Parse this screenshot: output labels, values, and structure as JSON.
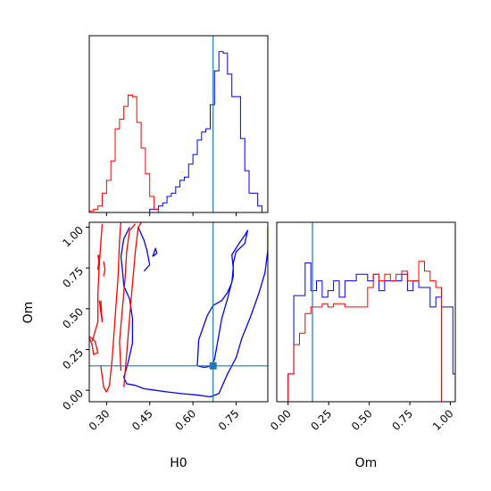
{
  "chart_data": {
    "type": "corner",
    "colors": {
      "series_a": "#0000ff",
      "series_b": "#ff0000",
      "truth": "#1f77b4"
    },
    "truth": {
      "H0": 0.67,
      "Om": 0.15
    },
    "axes_ranges": {
      "H0": [
        0.24,
        0.86
      ],
      "Om": [
        -0.07,
        1.03
      ]
    },
    "grid": false,
    "panels": [
      {
        "name": "H0 marginal",
        "type": "histogram",
        "xlim": [
          0.24,
          0.86
        ],
        "bin_edges": [
          0.24,
          0.255,
          0.27,
          0.285,
          0.3,
          0.315,
          0.33,
          0.345,
          0.36,
          0.375,
          0.39,
          0.405,
          0.42,
          0.435,
          0.45,
          0.465,
          0.48,
          0.495,
          0.51,
          0.525,
          0.54,
          0.555,
          0.57,
          0.585,
          0.6,
          0.615,
          0.63,
          0.645,
          0.66,
          0.675,
          0.69,
          0.705,
          0.72,
          0.735,
          0.75,
          0.765,
          0.78,
          0.795,
          0.81,
          0.825,
          0.84,
          0.855
        ],
        "series": [
          {
            "counts": [
              0,
              0,
              0,
              0,
              0,
              0,
              0,
              0,
              0,
              0,
              0,
              0,
              0,
              0,
              0.02,
              0.02,
              0.04,
              0.06,
              0.1,
              0.12,
              0.16,
              0.2,
              0.22,
              0.3,
              0.36,
              0.45,
              0.5,
              0.52,
              0.67,
              0.88,
              1.0,
              0.99,
              0.86,
              0.72,
              0.72,
              0.46,
              0.26,
              0.12,
              0.12,
              0.04,
              0.0
            ]
          },
          {
            "counts": [
              0.01,
              0.02,
              0.04,
              0.12,
              0.2,
              0.32,
              0.52,
              0.58,
              0.66,
              0.73,
              0.72,
              0.56,
              0.4,
              0.24,
              0.1,
              0.02,
              0,
              0,
              0,
              0,
              0,
              0,
              0,
              0,
              0,
              0,
              0,
              0,
              0,
              0,
              0,
              0,
              0,
              0,
              0,
              0,
              0,
              0,
              0,
              0,
              0
            ]
          }
        ]
      },
      {
        "name": "Om marginal",
        "type": "histogram",
        "xlim": [
          -0.07,
          1.03
        ],
        "bin_edges": [
          -0.07,
          -0.035,
          0,
          0.035,
          0.07,
          0.105,
          0.14,
          0.175,
          0.21,
          0.245,
          0.28,
          0.315,
          0.35,
          0.385,
          0.42,
          0.455,
          0.49,
          0.525,
          0.56,
          0.595,
          0.63,
          0.665,
          0.7,
          0.735,
          0.77,
          0.805,
          0.84,
          0.875,
          0.91,
          0.945,
          0.98,
          1.015,
          1.05
        ],
        "series": [
          {
            "counts": [
              0,
              0,
              0.17,
              0.65,
              0.65,
              0.85,
              0.68,
              0.74,
              0.64,
              0.68,
              0.74,
              0.64,
              0.74,
              0.74,
              0.78,
              0.78,
              0.74,
              0.78,
              0.68,
              0.74,
              0.74,
              0.74,
              0.78,
              0.68,
              0.74,
              0.7,
              0.7,
              0.58,
              0.64,
              0.58,
              0.58,
              0.17
            ]
          },
          {
            "counts": [
              0,
              0,
              0.17,
              0.35,
              0.42,
              0.54,
              0.58,
              0.58,
              0.6,
              0.58,
              0.6,
              0.6,
              0.58,
              0.58,
              0.58,
              0.58,
              0.7,
              0.78,
              0.74,
              0.78,
              0.74,
              0.78,
              0.8,
              0.74,
              0.74,
              0.86,
              0.8,
              0.74,
              0.7,
              0.0,
              0,
              0
            ]
          }
        ]
      },
      {
        "name": "H0 vs Om",
        "type": "contour",
        "xlabel": "H0",
        "ylabel": "Om",
        "xlim": [
          0.24,
          0.86
        ],
        "ylim": [
          -0.07,
          1.03
        ],
        "contours": [
          {
            "series": 0,
            "points": [
              [
                0.615,
                0.15
              ],
              [
                0.62,
                0.31
              ],
              [
                0.65,
                0.46
              ],
              [
                0.67,
                0.52
              ],
              [
                0.7,
                0.55
              ],
              [
                0.72,
                0.6
              ],
              [
                0.735,
                0.66
              ],
              [
                0.74,
                0.75
              ],
              [
                0.735,
                0.83
              ],
              [
                0.76,
                0.9
              ],
              [
                0.78,
                0.95
              ],
              [
                0.79,
                0.98
              ],
              [
                0.78,
                0.9
              ],
              [
                0.75,
                0.85
              ],
              [
                0.74,
                0.78
              ],
              [
                0.74,
                0.7
              ],
              [
                0.72,
                0.56
              ],
              [
                0.7,
                0.44
              ],
              [
                0.69,
                0.34
              ],
              [
                0.675,
                0.19
              ],
              [
                0.665,
                0.15
              ],
              [
                0.64,
                0.14
              ],
              [
                0.615,
                0.15
              ]
            ]
          },
          {
            "series": 0,
            "points": [
              [
                0.38,
                1.0
              ],
              [
                0.36,
                0.93
              ],
              [
                0.35,
                0.82
              ],
              [
                0.355,
                0.74
              ],
              [
                0.36,
                0.64
              ],
              [
                0.38,
                0.56
              ],
              [
                0.39,
                0.44
              ],
              [
                0.39,
                0.29
              ],
              [
                0.375,
                0.17
              ],
              [
                0.36,
                0.08
              ],
              [
                0.37,
                0.04
              ],
              [
                0.4,
                0.03
              ],
              [
                0.43,
                0.01
              ],
              [
                0.47,
                0.0
              ],
              [
                0.51,
                -0.01
              ],
              [
                0.56,
                -0.02
              ],
              [
                0.62,
                -0.03
              ],
              [
                0.66,
                -0.04
              ],
              [
                0.69,
                -0.02
              ],
              [
                0.72,
                0.1
              ],
              [
                0.75,
                0.2
              ],
              [
                0.77,
                0.32
              ],
              [
                0.8,
                0.45
              ],
              [
                0.83,
                0.6
              ],
              [
                0.85,
                0.72
              ],
              [
                0.86,
                0.86
              ],
              [
                0.86,
                1.0
              ]
            ]
          },
          {
            "series": 0,
            "points": [
              [
                0.41,
                1.0
              ],
              [
                0.43,
                0.92
              ],
              [
                0.44,
                0.86
              ],
              [
                0.45,
                0.77
              ],
              [
                0.43,
                0.73
              ]
            ]
          },
          {
            "series": 0,
            "points": [
              [
                0.46,
                0.82
              ],
              [
                0.47,
                0.87
              ],
              [
                0.475,
                0.84
              ],
              [
                0.46,
                0.82
              ]
            ]
          },
          {
            "series": 1,
            "points": [
              [
                0.28,
                0.15
              ],
              [
                0.29,
                0.02
              ],
              [
                0.3,
                -0.01
              ],
              [
                0.31,
                0.03
              ],
              [
                0.32,
                0.2
              ],
              [
                0.33,
                0.45
              ],
              [
                0.34,
                0.7
              ],
              [
                0.345,
                0.92
              ],
              [
                0.35,
                1.04
              ]
            ]
          },
          {
            "series": 1,
            "points": [
              [
                0.25,
                0.3
              ],
              [
                0.27,
                0.42
              ],
              [
                0.27,
                0.6
              ],
              [
                0.275,
                0.78
              ],
              [
                0.28,
                0.9
              ],
              [
                0.285,
                1.02
              ]
            ]
          },
          {
            "series": 1,
            "points": [
              [
                0.36,
                0.02
              ],
              [
                0.37,
                0.22
              ],
              [
                0.38,
                0.45
              ],
              [
                0.39,
                0.65
              ],
              [
                0.4,
                0.85
              ],
              [
                0.41,
                1.0
              ],
              [
                0.425,
                1.04
              ]
            ]
          },
          {
            "series": 1,
            "points": [
              [
                0.35,
                0.12
              ],
              [
                0.345,
                0.3
              ],
              [
                0.355,
                0.5
              ],
              [
                0.365,
                0.7
              ],
              [
                0.37,
                0.85
              ],
              [
                0.38,
                0.98
              ],
              [
                0.4,
                1.02
              ]
            ]
          },
          {
            "series": 1,
            "points": [
              [
                0.24,
                0.32
              ],
              [
                0.25,
                0.28
              ],
              [
                0.255,
                0.22
              ],
              [
                0.27,
                0.23
              ],
              [
                0.26,
                0.3
              ],
              [
                0.24,
                0.33
              ]
            ]
          },
          {
            "series": 1,
            "points": [
              [
                0.275,
                0.55
              ],
              [
                0.28,
                0.48
              ],
              [
                0.285,
                0.42
              ],
              [
                0.28,
                0.55
              ]
            ]
          },
          {
            "series": 1,
            "points": [
              [
                0.27,
                0.83
              ],
              [
                0.275,
                0.77
              ],
              [
                0.27,
                0.74
              ],
              [
                0.275,
                0.83
              ]
            ]
          },
          {
            "series": 1,
            "points": [
              [
                0.29,
                0.79
              ],
              [
                0.295,
                0.74
              ],
              [
                0.29,
                0.7
              ]
            ]
          }
        ]
      }
    ],
    "tick_labels": {
      "H0": [
        "0.30",
        "0.45",
        "0.60",
        "0.75"
      ],
      "Om": [
        "0.00",
        "0.25",
        "0.50",
        "0.75",
        "1.00"
      ]
    }
  },
  "labels": {
    "x_left": "H0",
    "x_right": "Om",
    "y_left": "Om"
  }
}
